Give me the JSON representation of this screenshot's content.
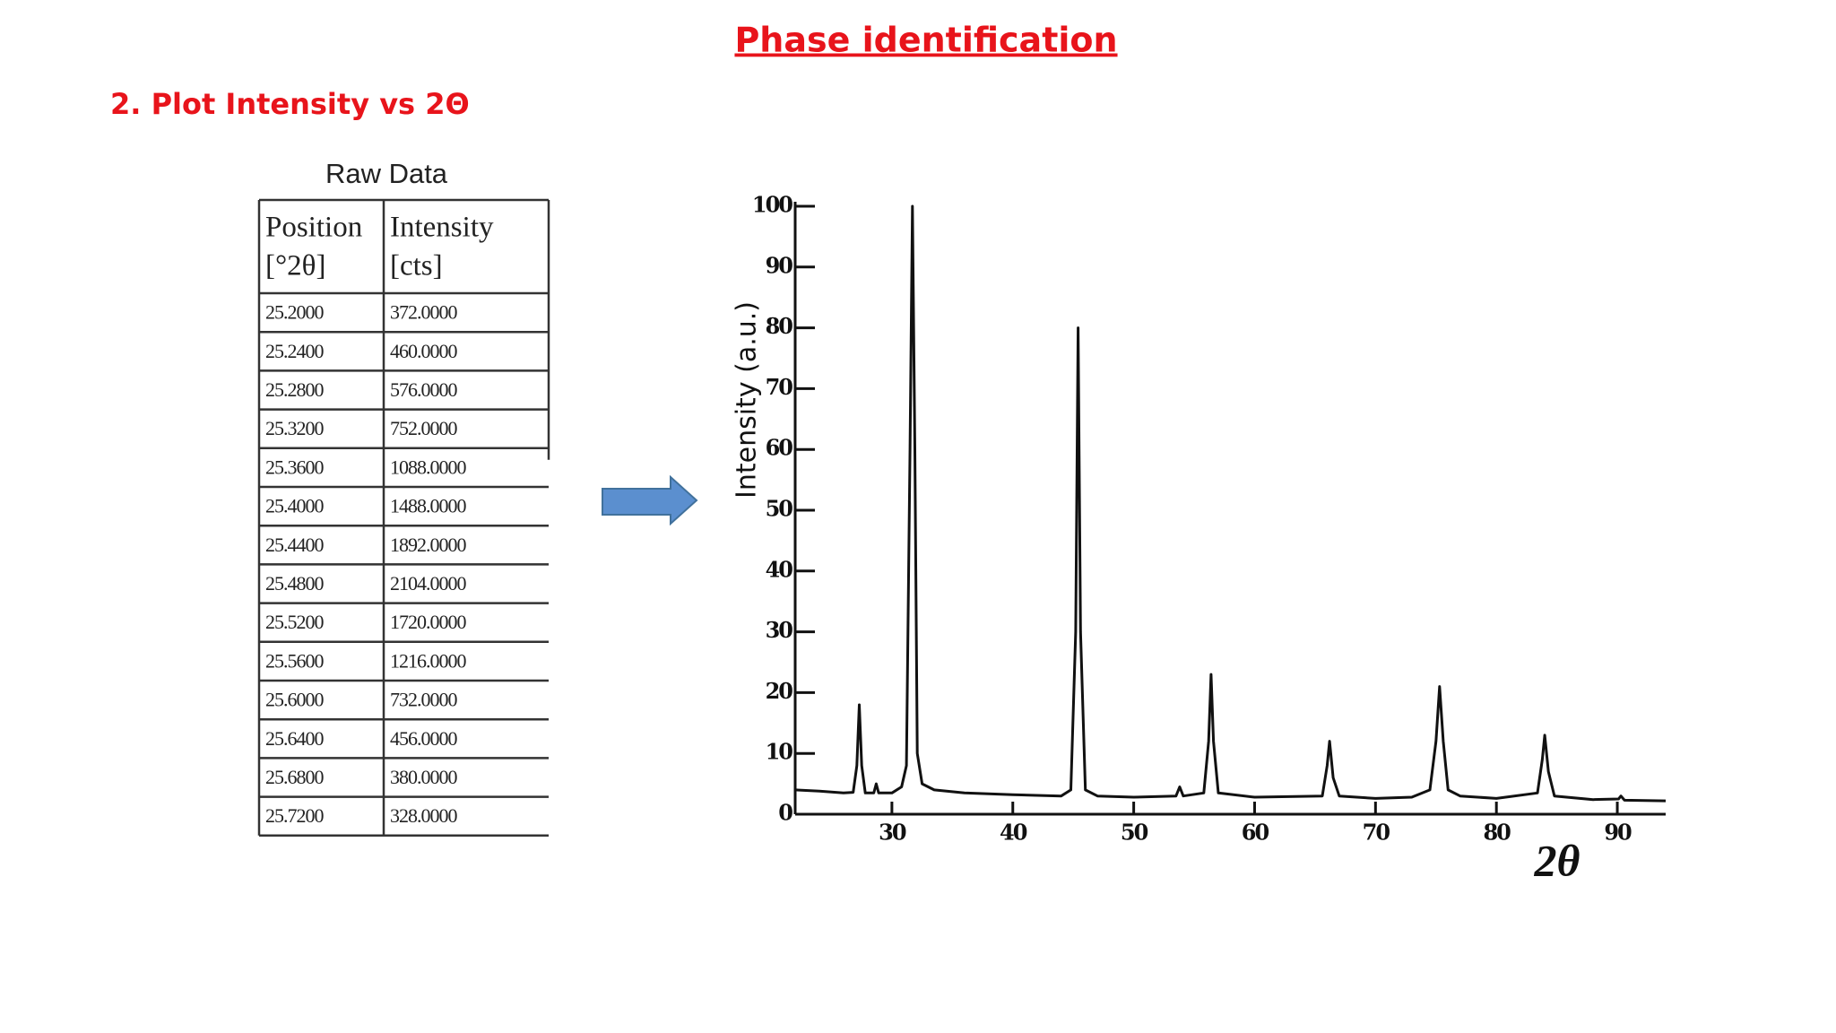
{
  "header": {
    "title": "Phase identification",
    "subtitle": "2. Plot Intensity vs 2Θ"
  },
  "table": {
    "caption": "Raw Data",
    "header": [
      [
        "Position",
        "[°2θ]"
      ],
      [
        "Intensity",
        "[cts]"
      ]
    ],
    "rows": [
      [
        "25.2000",
        "372.0000"
      ],
      [
        "25.2400",
        "460.0000"
      ],
      [
        "25.2800",
        "576.0000"
      ],
      [
        "25.3200",
        "752.0000"
      ],
      [
        "25.3600",
        "1088.0000"
      ],
      [
        "25.4000",
        "1488.0000"
      ],
      [
        "25.4400",
        "1892.0000"
      ],
      [
        "25.4800",
        "2104.0000"
      ],
      [
        "25.5200",
        "1720.0000"
      ],
      [
        "25.5600",
        "1216.0000"
      ],
      [
        "25.6000",
        "732.0000"
      ],
      [
        "25.6400",
        "456.0000"
      ],
      [
        "25.6800",
        "380.0000"
      ],
      [
        "25.7200",
        "328.0000"
      ]
    ]
  },
  "chart_data": {
    "type": "line",
    "y_label": "Intensity (a.u.)",
    "x_label": "2θ",
    "color": "#111111",
    "x": [
      22,
      24,
      26,
      26.8,
      27.1,
      27.3,
      27.5,
      27.8,
      28.5,
      28.7,
      28.9,
      30,
      30.8,
      31.2,
      31.5,
      31.7,
      31.9,
      32.1,
      32.5,
      33.5,
      36,
      40,
      44,
      44.8,
      45.2,
      45.4,
      45.6,
      46,
      47,
      50,
      53.5,
      53.8,
      54.1,
      55.8,
      56.2,
      56.4,
      56.6,
      57,
      60,
      65.6,
      66,
      66.2,
      66.5,
      67,
      70,
      73,
      74.5,
      75,
      75.3,
      75.6,
      76,
      77,
      80,
      83.4,
      83.8,
      84,
      84.3,
      84.8,
      88,
      90.1,
      90.3,
      90.6,
      94
    ],
    "values": [
      4,
      3.8,
      3.5,
      3.6,
      8,
      18,
      8,
      3.5,
      3.5,
      5,
      3.5,
      3.5,
      4.5,
      8,
      60,
      100,
      60,
      10,
      5,
      4,
      3.5,
      3.2,
      3,
      4,
      30,
      80,
      30,
      4,
      3,
      2.8,
      3,
      4.5,
      3,
      3.5,
      12,
      23,
      12,
      3.5,
      2.8,
      3,
      8,
      12,
      6,
      3,
      2.6,
      2.8,
      4,
      12,
      21,
      12,
      4,
      3,
      2.6,
      3.5,
      9,
      13,
      7,
      3,
      2.4,
      2.5,
      3,
      2.3,
      2.2
    ],
    "xlim": [
      22,
      94
    ],
    "xticks": [
      30,
      40,
      50,
      60,
      70,
      80,
      90
    ],
    "ylim": [
      0,
      100
    ],
    "yticks": [
      0,
      10,
      20,
      30,
      40,
      50,
      60,
      70,
      80,
      90,
      100
    ]
  }
}
